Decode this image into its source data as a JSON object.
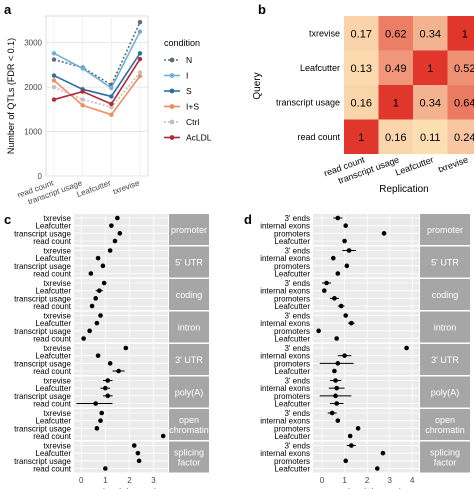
{
  "colors": {
    "panel_bg": "#ebebeb",
    "grid": "#ffffff",
    "strip_bg": "#a6a6a6",
    "strip_text": "#ffffff",
    "point": "#000000",
    "heat_low": "#fff3c4",
    "heat_high": "#e0362c"
  },
  "panel_labels": [
    "a",
    "b",
    "c",
    "d"
  ],
  "chart_data": [
    {
      "type": "line",
      "panel": "a",
      "categories": [
        "read count",
        "transcript usage",
        "Leafcutter",
        "txrevise"
      ],
      "xlabel": "",
      "ylabel": "Number of QTLs (FDR < 0.1)",
      "ylim": [
        0,
        3600
      ],
      "yticks": [
        0,
        1000,
        2000,
        3000
      ],
      "legend_title": "condition",
      "legend_position": "right",
      "grid": true,
      "series": [
        {
          "name": "N",
          "color": "#5f6b7a",
          "dash": "2,2",
          "values": [
            2620,
            2440,
            2050,
            3460
          ]
        },
        {
          "name": "I",
          "color": "#6fb1d6",
          "dash": "",
          "values": [
            2760,
            2420,
            1980,
            3250
          ]
        },
        {
          "name": "S",
          "color": "#2d6fa3",
          "dash": "",
          "values": [
            2260,
            1950,
            1790,
            2760
          ]
        },
        {
          "name": "I+S",
          "color": "#f28c5e",
          "dash": "",
          "values": [
            2150,
            1590,
            1380,
            2250
          ]
        },
        {
          "name": "Ctrl",
          "color": "#c0c0c0",
          "dash": "2,2",
          "values": [
            2000,
            1720,
            1550,
            2330
          ]
        },
        {
          "name": "AcLDL",
          "color": "#b02a37",
          "dash": "",
          "values": [
            1720,
            1900,
            1620,
            2630
          ]
        }
      ]
    },
    {
      "type": "heatmap",
      "panel": "b",
      "xlabel": "Replication",
      "ylabel": "Query",
      "x_categories": [
        "read count",
        "transcript usage",
        "Leafcutter",
        "txrevise"
      ],
      "y_categories": [
        "txrevise",
        "Leafcutter",
        "transcript usage",
        "read count"
      ],
      "values": [
        [
          0.17,
          0.62,
          0.34,
          1
        ],
        [
          0.13,
          0.49,
          1,
          0.52
        ],
        [
          0.16,
          1,
          0.34,
          0.64
        ],
        [
          1,
          0.16,
          0.11,
          0.24
        ]
      ]
    },
    {
      "type": "scatter",
      "panel": "c",
      "xlabel": "Log(enrichment)",
      "xlim": [
        -0.3,
        3.6
      ],
      "xticks": [
        0,
        1,
        2,
        3
      ],
      "facets": [
        {
          "label": [
            "promoter"
          ],
          "rows": [
            {
              "label": "txrevise",
              "value": 1.5,
              "lo": null,
              "hi": null
            },
            {
              "label": "Leafcutter",
              "value": 1.25,
              "lo": null,
              "hi": null
            },
            {
              "label": "transcript usage",
              "value": 1.6,
              "lo": null,
              "hi": null
            },
            {
              "label": "read count",
              "value": 1.4,
              "lo": null,
              "hi": null
            }
          ]
        },
        {
          "label": [
            "5' UTR"
          ],
          "rows": [
            {
              "label": "txrevise",
              "value": 1.2,
              "lo": null,
              "hi": null
            },
            {
              "label": "Leafcutter",
              "value": 0.7,
              "lo": null,
              "hi": null
            },
            {
              "label": "transcript usage",
              "value": 0.9,
              "lo": null,
              "hi": null
            },
            {
              "label": "read count",
              "value": 0.4,
              "lo": null,
              "hi": null
            }
          ]
        },
        {
          "label": [
            "coding"
          ],
          "rows": [
            {
              "label": "txrevise",
              "value": 0.95,
              "lo": null,
              "hi": null
            },
            {
              "label": "Leafcutter",
              "value": 0.75,
              "lo": 0.6,
              "hi": 0.9
            },
            {
              "label": "transcript usage",
              "value": 0.6,
              "lo": null,
              "hi": null
            },
            {
              "label": "read count",
              "value": 0.45,
              "lo": null,
              "hi": null
            }
          ]
        },
        {
          "label": [
            "intron"
          ],
          "rows": [
            {
              "label": "txrevise",
              "value": 0.8,
              "lo": null,
              "hi": null
            },
            {
              "label": "Leafcutter",
              "value": 0.65,
              "lo": null,
              "hi": null
            },
            {
              "label": "transcript usage",
              "value": 0.35,
              "lo": null,
              "hi": null
            },
            {
              "label": "read count",
              "value": 0.1,
              "lo": null,
              "hi": null
            }
          ]
        },
        {
          "label": [
            "3' UTR"
          ],
          "rows": [
            {
              "label": "txrevise",
              "value": 1.85,
              "lo": null,
              "hi": null
            },
            {
              "label": "Leafcutter",
              "value": 0.7,
              "lo": null,
              "hi": null
            },
            {
              "label": "transcript usage",
              "value": 1.2,
              "lo": null,
              "hi": null
            },
            {
              "label": "read count",
              "value": 1.55,
              "lo": 1.3,
              "hi": 1.8
            }
          ]
        },
        {
          "label": [
            "poly(A)"
          ],
          "rows": [
            {
              "label": "txrevise",
              "value": 1.1,
              "lo": 0.9,
              "hi": 1.3
            },
            {
              "label": "Leafcutter",
              "value": 1.0,
              "lo": 0.8,
              "hi": 1.2
            },
            {
              "label": "transcript usage",
              "value": 1.1,
              "lo": 0.9,
              "hi": 1.3
            },
            {
              "label": "read count",
              "value": 0.6,
              "lo": -0.2,
              "hi": 1.3
            }
          ]
        },
        {
          "label": [
            "open",
            "chromatin"
          ],
          "rows": [
            {
              "label": "txrevise",
              "value": 0.85,
              "lo": null,
              "hi": null
            },
            {
              "label": "Leafcutter",
              "value": 0.8,
              "lo": null,
              "hi": null
            },
            {
              "label": "transcript usage",
              "value": 0.65,
              "lo": null,
              "hi": null
            },
            {
              "label": "read count",
              "value": 3.4,
              "lo": null,
              "hi": null
            }
          ]
        },
        {
          "label": [
            "splicing",
            "factor"
          ],
          "rows": [
            {
              "label": "txrevise",
              "value": 2.2,
              "lo": null,
              "hi": null
            },
            {
              "label": "Leafcutter",
              "value": 2.35,
              "lo": null,
              "hi": null
            },
            {
              "label": "transcript usage",
              "value": 2.4,
              "lo": null,
              "hi": null
            },
            {
              "label": "read count",
              "value": 1.0,
              "lo": null,
              "hi": null
            }
          ]
        }
      ]
    },
    {
      "type": "scatter",
      "panel": "d",
      "xlabel": "Log(enrichment)",
      "xlim": [
        -0.4,
        4.3
      ],
      "xticks": [
        0,
        1,
        2,
        3,
        4
      ],
      "facets": [
        {
          "label": [
            "promoter"
          ],
          "rows": [
            {
              "label": "3' ends",
              "value": 0.7,
              "lo": 0.5,
              "hi": 0.9
            },
            {
              "label": "internal exons",
              "value": 1.05,
              "lo": null,
              "hi": null
            },
            {
              "label": "promoters",
              "value": 2.75,
              "lo": null,
              "hi": null
            },
            {
              "label": "Leafcutter",
              "value": 1.0,
              "lo": null,
              "hi": null
            }
          ]
        },
        {
          "label": [
            "5' UTR"
          ],
          "rows": [
            {
              "label": "3' ends",
              "value": 1.2,
              "lo": 0.9,
              "hi": 1.5
            },
            {
              "label": "internal exons",
              "value": 0.5,
              "lo": null,
              "hi": null
            },
            {
              "label": "promoters",
              "value": 1.1,
              "lo": null,
              "hi": null
            },
            {
              "label": "Leafcutter",
              "value": 0.7,
              "lo": null,
              "hi": null
            }
          ]
        },
        {
          "label": [
            "coding"
          ],
          "rows": [
            {
              "label": "3' ends",
              "value": 0.2,
              "lo": 0.0,
              "hi": 0.4
            },
            {
              "label": "internal exons",
              "value": 0.1,
              "lo": null,
              "hi": null
            },
            {
              "label": "promoters",
              "value": 0.55,
              "lo": 0.35,
              "hi": 0.75
            },
            {
              "label": "Leafcutter",
              "value": 0.85,
              "lo": 0.7,
              "hi": 1.0
            }
          ]
        },
        {
          "label": [
            "intron"
          ],
          "rows": [
            {
              "label": "3' ends",
              "value": 1.05,
              "lo": null,
              "hi": null
            },
            {
              "label": "internal exons",
              "value": 1.3,
              "lo": 1.15,
              "hi": 1.45
            },
            {
              "label": "promoters",
              "value": -0.15,
              "lo": null,
              "hi": null
            },
            {
              "label": "Leafcutter",
              "value": 0.65,
              "lo": null,
              "hi": null
            }
          ]
        },
        {
          "label": [
            "3' UTR"
          ],
          "rows": [
            {
              "label": "3' ends",
              "value": 3.75,
              "lo": null,
              "hi": null
            },
            {
              "label": "internal exons",
              "value": 1.0,
              "lo": 0.7,
              "hi": 1.3
            },
            {
              "label": "promoters",
              "value": 0.7,
              "lo": -0.1,
              "hi": 1.4
            },
            {
              "label": "Leafcutter",
              "value": 0.55,
              "lo": null,
              "hi": null
            }
          ]
        },
        {
          "label": [
            "poly(A)"
          ],
          "rows": [
            {
              "label": "3' ends",
              "value": 0.6,
              "lo": 0.35,
              "hi": 0.85
            },
            {
              "label": "internal exons",
              "value": 0.65,
              "lo": 0.3,
              "hi": 1.0
            },
            {
              "label": "promoters",
              "value": 0.6,
              "lo": -0.1,
              "hi": 1.3
            },
            {
              "label": "Leafcutter",
              "value": 0.65,
              "lo": 0.35,
              "hi": 0.95
            }
          ]
        },
        {
          "label": [
            "open",
            "chromatin"
          ],
          "rows": [
            {
              "label": "3' ends",
              "value": 0.45,
              "lo": 0.25,
              "hi": 0.65
            },
            {
              "label": "internal exons",
              "value": 0.7,
              "lo": null,
              "hi": null
            },
            {
              "label": "promoters",
              "value": 1.6,
              "lo": null,
              "hi": null
            },
            {
              "label": "Leafcutter",
              "value": 1.25,
              "lo": null,
              "hi": null
            }
          ]
        },
        {
          "label": [
            "splicing",
            "factor"
          ],
          "rows": [
            {
              "label": "3' ends",
              "value": 1.3,
              "lo": 1.1,
              "hi": 1.5
            },
            {
              "label": "internal exons",
              "value": 2.7,
              "lo": null,
              "hi": null
            },
            {
              "label": "promoters",
              "value": 1.05,
              "lo": null,
              "hi": null
            },
            {
              "label": "Leafcutter",
              "value": 2.45,
              "lo": null,
              "hi": null
            }
          ]
        }
      ]
    }
  ]
}
